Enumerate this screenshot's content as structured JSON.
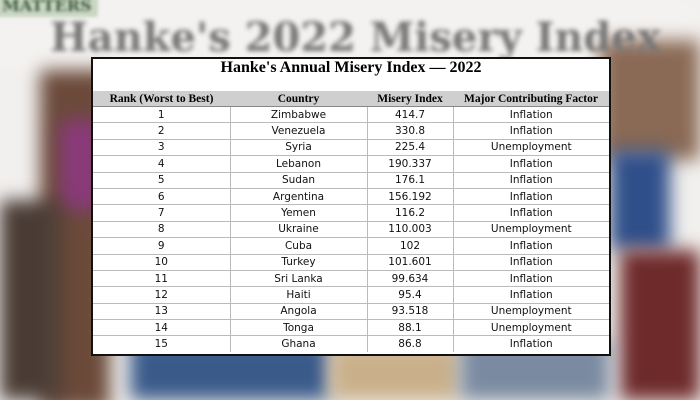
{
  "background": {
    "brand": "MATTERS",
    "title": "Hanke's 2022 Misery Index"
  },
  "table": {
    "title": "Hanke's Annual Misery Index — 2022",
    "headers": [
      "Rank (Worst to Best)",
      "Country",
      "Misery Index",
      "Major Contributing Factor"
    ],
    "rows": [
      [
        1,
        "Zimbabwe",
        414.7,
        "Inflation"
      ],
      [
        2,
        "Venezuela",
        330.8,
        "Inflation"
      ],
      [
        3,
        "Syria",
        225.4,
        "Unemployment"
      ],
      [
        4,
        "Lebanon",
        190.337,
        "Inflation"
      ],
      [
        5,
        "Sudan",
        176.1,
        "Inflation"
      ],
      [
        6,
        "Argentina",
        156.192,
        "Inflation"
      ],
      [
        7,
        "Yemen",
        116.2,
        "Inflation"
      ],
      [
        8,
        "Ukraine",
        110.003,
        "Unemployment"
      ],
      [
        9,
        "Cuba",
        102,
        "Inflation"
      ],
      [
        10,
        "Turkey",
        101.601,
        "Inflation"
      ],
      [
        11,
        "Sri Lanka",
        99.634,
        "Inflation"
      ],
      [
        12,
        "Haiti",
        95.4,
        "Inflation"
      ],
      [
        13,
        "Angola",
        93.518,
        "Unemployment"
      ],
      [
        14,
        "Tonga",
        88.1,
        "Unemployment"
      ],
      [
        15,
        "Ghana",
        86.8,
        "Inflation"
      ]
    ]
  }
}
